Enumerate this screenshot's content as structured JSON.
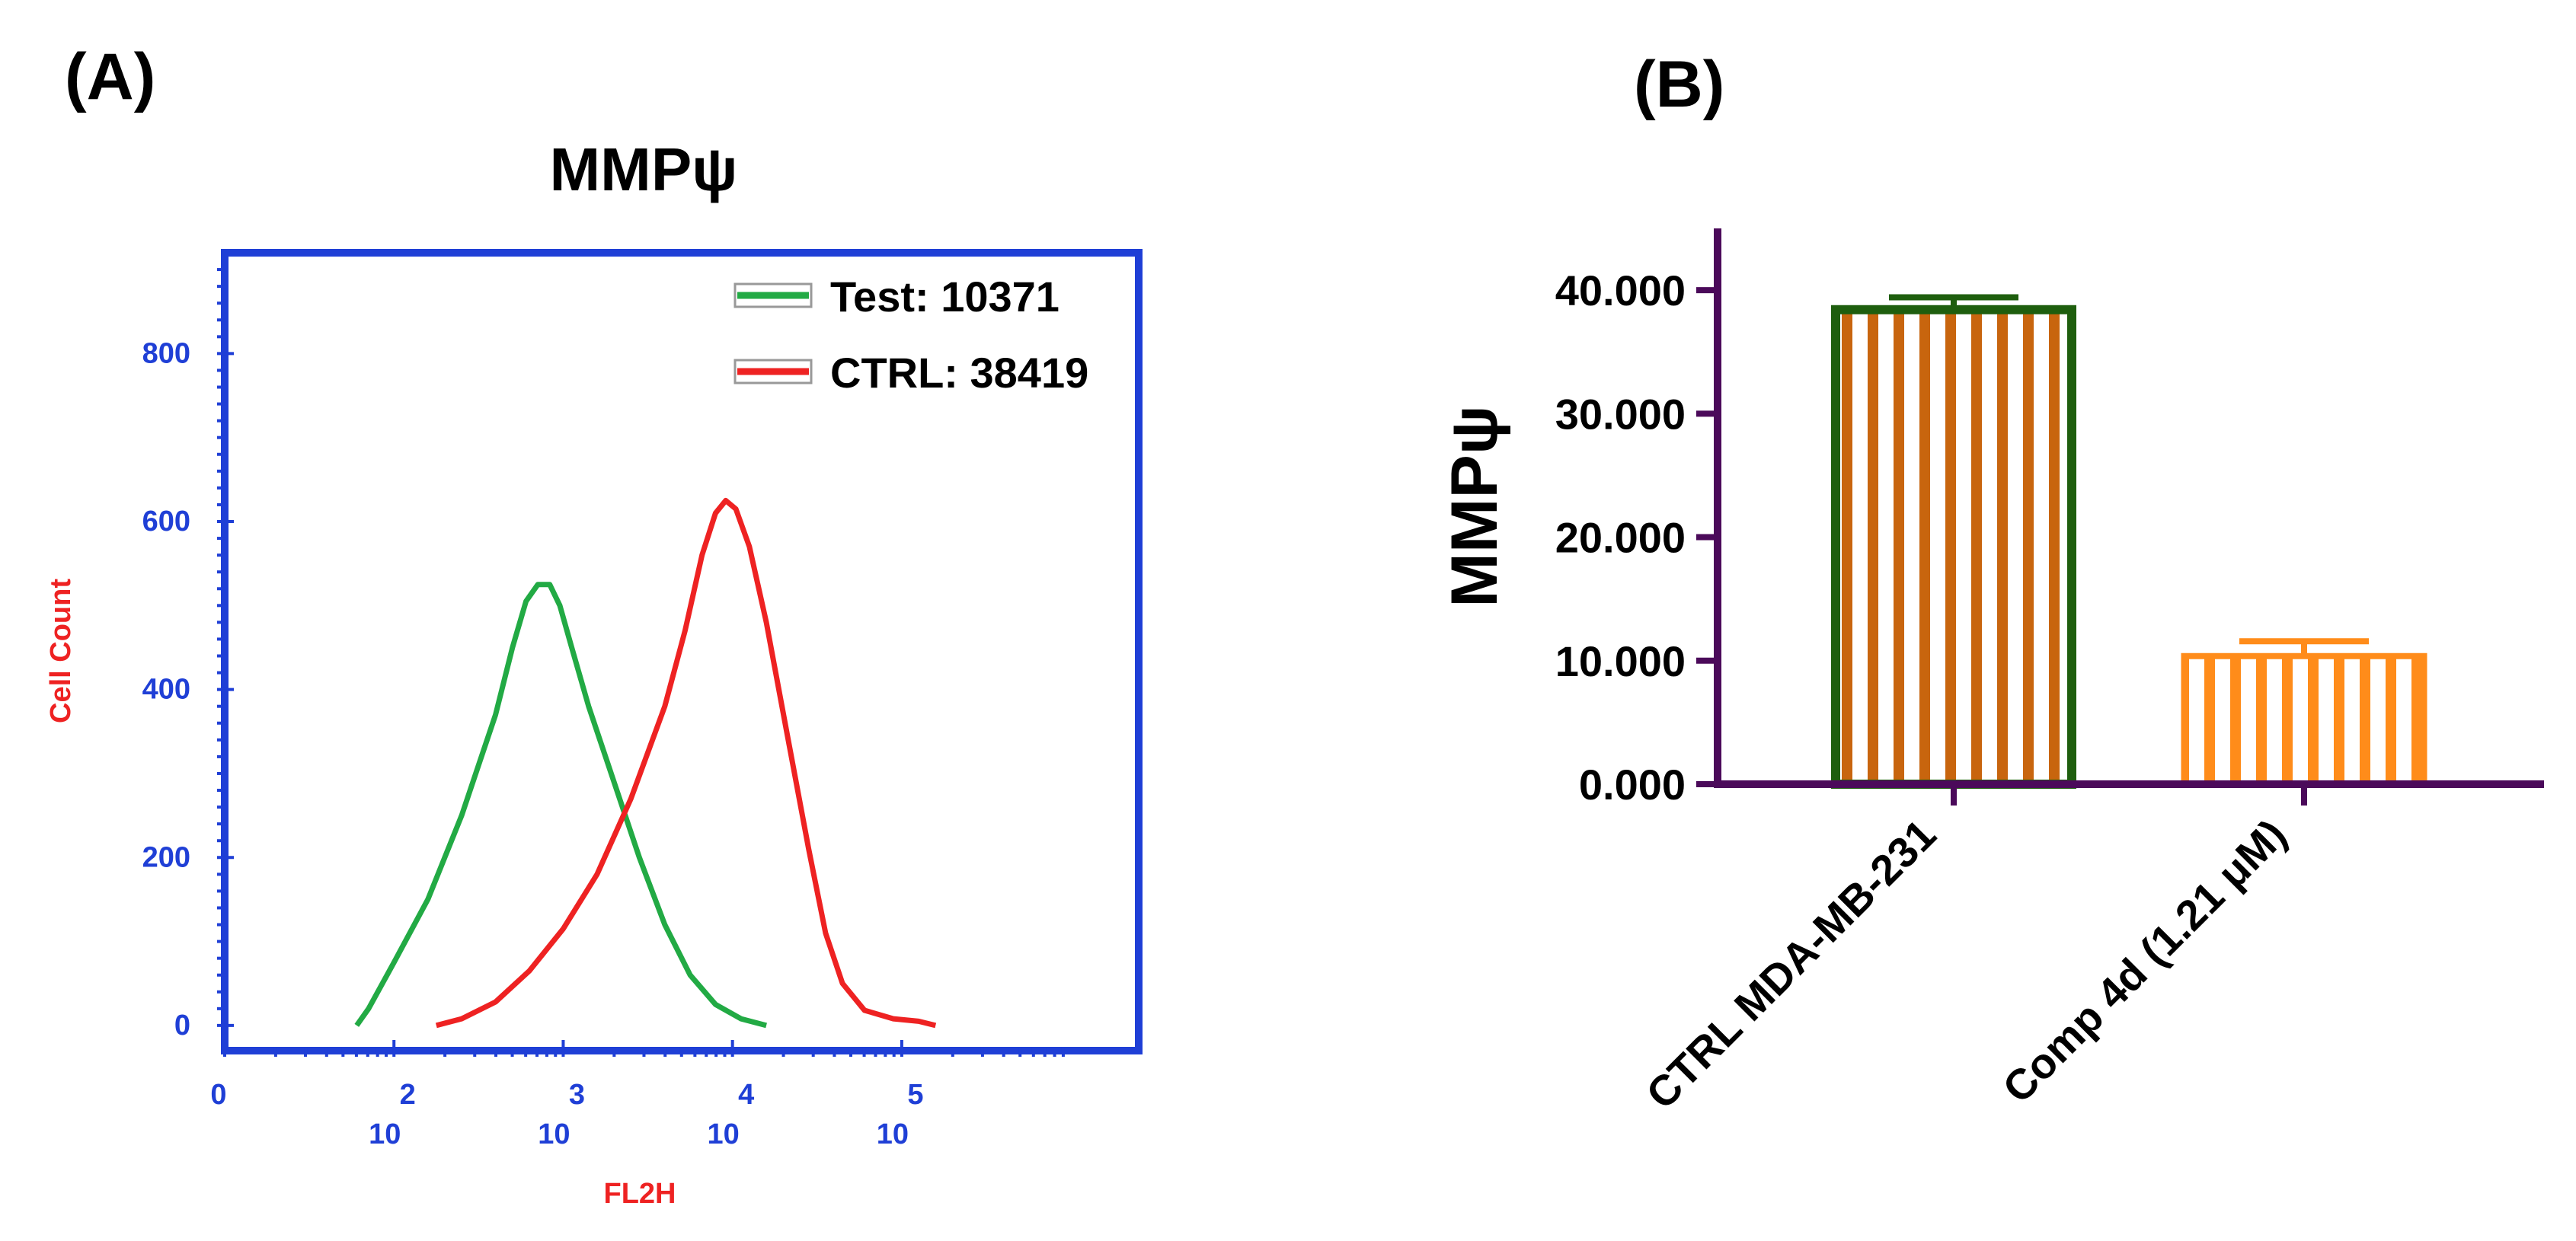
{
  "chart_data": [
    {
      "panel": "(A)",
      "type": "line",
      "title": "MMPψ",
      "xlabel": "FL2H",
      "ylabel": "Cell Count",
      "xlim": [
        0,
        5.4
      ],
      "ylim": [
        -30,
        920
      ],
      "x_ticks": [
        {
          "pos": 0,
          "base": "",
          "exp": "0"
        },
        {
          "pos": 1,
          "base": "10",
          "exp": "2"
        },
        {
          "pos": 2,
          "base": "10",
          "exp": "3"
        },
        {
          "pos": 3,
          "base": "10",
          "exp": "4"
        },
        {
          "pos": 4,
          "base": "10",
          "exp": "5"
        }
      ],
      "y_ticks": [
        0,
        200,
        400,
        600,
        800
      ],
      "legend_position": "top-right",
      "series": [
        {
          "name": "Test: 10371",
          "color": "#22aa44",
          "points": [
            [
              0.78,
              0
            ],
            [
              0.85,
              20
            ],
            [
              1.0,
              75
            ],
            [
              1.2,
              150
            ],
            [
              1.4,
              250
            ],
            [
              1.6,
              370
            ],
            [
              1.7,
              450
            ],
            [
              1.78,
              505
            ],
            [
              1.85,
              525
            ],
            [
              1.92,
              525
            ],
            [
              1.98,
              500
            ],
            [
              2.05,
              450
            ],
            [
              2.15,
              380
            ],
            [
              2.3,
              290
            ],
            [
              2.45,
              200
            ],
            [
              2.6,
              120
            ],
            [
              2.75,
              60
            ],
            [
              2.9,
              25
            ],
            [
              3.05,
              8
            ],
            [
              3.2,
              0
            ]
          ]
        },
        {
          "name": "CTRL: 38419",
          "color": "#ee2222",
          "points": [
            [
              1.25,
              0
            ],
            [
              1.4,
              8
            ],
            [
              1.6,
              28
            ],
            [
              1.8,
              65
            ],
            [
              2.0,
              115
            ],
            [
              2.2,
              180
            ],
            [
              2.4,
              270
            ],
            [
              2.6,
              380
            ],
            [
              2.72,
              470
            ],
            [
              2.82,
              560
            ],
            [
              2.9,
              610
            ],
            [
              2.96,
              625
            ],
            [
              3.02,
              615
            ],
            [
              3.1,
              570
            ],
            [
              3.2,
              480
            ],
            [
              3.32,
              350
            ],
            [
              3.45,
              210
            ],
            [
              3.55,
              110
            ],
            [
              3.65,
              50
            ],
            [
              3.78,
              18
            ],
            [
              3.95,
              8
            ],
            [
              4.1,
              5
            ],
            [
              4.2,
              0
            ]
          ]
        }
      ]
    },
    {
      "panel": "(B)",
      "type": "bar",
      "title": "",
      "xlabel": "",
      "ylabel": "MMPψ",
      "ylim": [
        0,
        45000
      ],
      "y_ticks": [
        0,
        10000,
        20000,
        30000,
        40000
      ],
      "y_tick_labels": [
        "0.000",
        "10.000",
        "20.000",
        "30.000",
        "40.000"
      ],
      "categories": [
        "CTRL MDA-MB-231",
        "Comp 4d (1.21 μM)"
      ],
      "values": [
        38419,
        10371
      ],
      "errors": [
        1000,
        1200
      ],
      "colors": [
        {
          "border": "#1e5e0e",
          "stripe": "#c8650e"
        },
        {
          "border": "#ff8c1a",
          "stripe": "#ff8c1a"
        }
      ],
      "axis_color": "#4b0a5a"
    }
  ]
}
